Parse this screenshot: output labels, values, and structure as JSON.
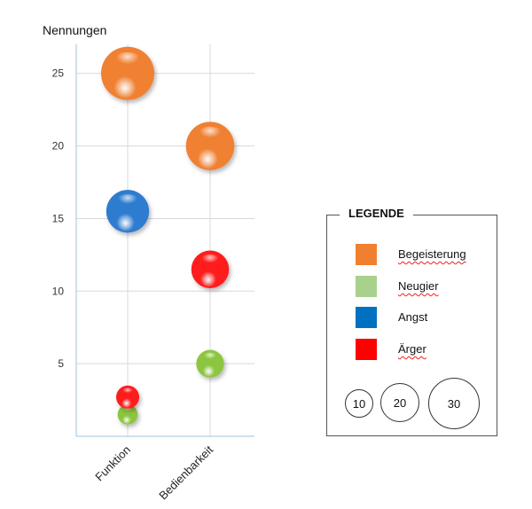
{
  "chart_data": {
    "type": "scatter",
    "title": "",
    "ylabel": "Nennungen",
    "xlabel": "",
    "categories": [
      "Funktion",
      "Bedienbarkeit"
    ],
    "ylim": [
      0,
      27
    ],
    "yticks": [
      5,
      10,
      15,
      20,
      25
    ],
    "grid": true,
    "legend_position": "right",
    "series": [
      {
        "name": "Begeisterung",
        "color": "#F08030",
        "points": [
          {
            "category": "Funktion",
            "y": 25,
            "size": 25
          },
          {
            "category": "Bedienbarkeit",
            "y": 20,
            "size": 20
          }
        ]
      },
      {
        "name": "Neugier",
        "color": "#8CC63F",
        "points": [
          {
            "category": "Funktion",
            "y": 1.5,
            "size": 2
          },
          {
            "category": "Bedienbarkeit",
            "y": 5,
            "size": 5
          }
        ]
      },
      {
        "name": "Angst",
        "color": "#2F7BD0",
        "points": [
          {
            "category": "Funktion",
            "y": 15.5,
            "size": 15
          }
        ]
      },
      {
        "name": "Ärger",
        "color": "#FF1A1A",
        "points": [
          {
            "category": "Funktion",
            "y": 2.7,
            "size": 3
          },
          {
            "category": "Bedienbarkeit",
            "y": 11.5,
            "size": 11
          }
        ]
      }
    ],
    "size_legend": [
      "10",
      "20",
      "30"
    ]
  },
  "legend": {
    "title": "LEGENDE",
    "items": [
      {
        "label": "Begeisterung",
        "color": "#F08030"
      },
      {
        "label": "Neugier",
        "color": "#A9D18E"
      },
      {
        "label": "Angst",
        "color": "#0070C0"
      },
      {
        "label": "Ärger",
        "color": "#FF0000"
      }
    ]
  }
}
